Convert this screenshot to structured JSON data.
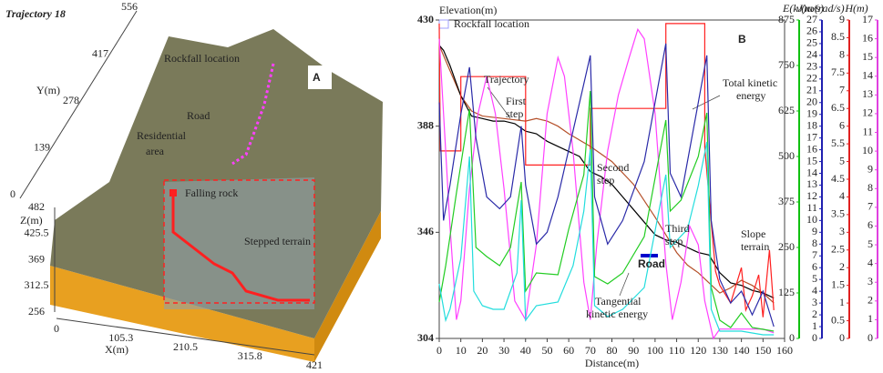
{
  "chart_data": [
    {
      "type": "terrain3d",
      "title": "Trajectory 18",
      "xlabel": "X(m)",
      "ylabel": "Y(m)",
      "zlabel": "Z(m)",
      "xlim": [
        0,
        421
      ],
      "xticks": [
        0,
        105.3,
        210.5,
        315.8,
        421
      ],
      "ylim": [
        0,
        556
      ],
      "yticks": [
        0,
        139,
        278,
        417,
        556
      ],
      "zlim": [
        256,
        482
      ],
      "zticks": [
        256,
        312.5,
        369,
        425.5,
        482
      ],
      "annotations": [
        [
          "Rockfall location"
        ],
        [
          "Road"
        ],
        [
          "Residential",
          "area"
        ],
        [
          "Falling rock"
        ],
        [
          "Stepped terrain"
        ],
        [
          "A"
        ]
      ]
    },
    {
      "type": "line",
      "xlabel": "Distance(m)",
      "ylabel": "Elevation(m)",
      "xlim": [
        0,
        160
      ],
      "xticks": [
        0,
        10,
        20,
        30,
        40,
        50,
        60,
        70,
        80,
        90,
        100,
        110,
        120,
        130,
        140,
        150,
        160
      ],
      "ylim": [
        304,
        430
      ],
      "yticks": [
        304,
        346,
        388,
        430
      ],
      "y2label": "E(kJ)",
      "y2color": "#10c010",
      "y2lim": [
        0,
        875
      ],
      "y2ticks": [
        0,
        125,
        250,
        375,
        500,
        625,
        750,
        875
      ],
      "y3label": "v(m/s)",
      "y3color": "#2020b0",
      "y3lim": [
        0,
        27
      ],
      "y3ticks": [
        0,
        1,
        2,
        3,
        4,
        5,
        6,
        7,
        8,
        9,
        10,
        11,
        12,
        13,
        14,
        15,
        16,
        17,
        18,
        19,
        20,
        21,
        22,
        23,
        24,
        25,
        26,
        27
      ],
      "y4label": "ω(rad/s)",
      "y4color": "#e02020",
      "y4lim": [
        0,
        9
      ],
      "y4ticks": [
        0,
        0.5,
        1,
        1.5,
        2,
        2.5,
        3,
        3.5,
        4,
        4.5,
        5,
        5.5,
        6,
        6.5,
        7,
        7.5,
        8,
        8.5,
        9
      ],
      "y5label": "H(m)",
      "y5color": "#e040e0",
      "y5lim": [
        0,
        17
      ],
      "y5ticks": [
        0,
        1,
        2,
        3,
        4,
        5,
        6,
        7,
        8,
        9,
        10,
        11,
        12,
        13,
        14,
        15,
        16,
        17
      ],
      "annotations": [
        [
          "Rockfall location"
        ],
        [
          "Trajectory"
        ],
        [
          "First",
          "step"
        ],
        [
          "Total kinetic",
          "energy"
        ],
        [
          "Second",
          "step"
        ],
        [
          "Third",
          "step"
        ],
        [
          "Road"
        ],
        [
          "Slope",
          "terrain"
        ],
        [
          "Tangential",
          "kinetic energy"
        ],
        [
          "B"
        ]
      ],
      "series": [
        {
          "color": "#b5502a",
          "x": [
            0,
            5,
            10,
            15,
            20,
            30,
            40,
            45,
            50,
            55,
            60,
            70,
            80,
            90,
            100,
            105,
            110,
            115,
            120,
            125,
            130,
            135,
            140,
            145,
            150,
            155
          ],
          "values": [
            420,
            410,
            400,
            394,
            392,
            391,
            390,
            391,
            390,
            388,
            385,
            380,
            374,
            365,
            352,
            345,
            338,
            333,
            330,
            326,
            322,
            324,
            327,
            325,
            322,
            318
          ]
        },
        {
          "color": "#000000",
          "x": [
            0,
            2,
            5,
            10,
            15,
            20,
            25,
            30,
            35,
            40,
            45,
            50,
            55,
            60,
            65,
            70,
            75,
            80,
            85,
            90,
            95,
            100,
            105,
            110,
            115,
            120,
            125,
            130,
            135,
            140,
            145,
            150,
            155
          ],
          "values": [
            420,
            418,
            412,
            400,
            392,
            391,
            390,
            390,
            389,
            386,
            385,
            382,
            380,
            378,
            376,
            370,
            368,
            365,
            360,
            355,
            350,
            345,
            343,
            342,
            340,
            338,
            337,
            330,
            326,
            325,
            323,
            322,
            320
          ]
        },
        {
          "color": "#ff2020",
          "axis": "y4",
          "x": [
            0,
            0.5,
            10,
            10,
            40,
            40,
            70,
            70,
            105,
            105,
            123,
            123,
            125,
            128,
            130,
            135,
            140,
            142,
            145,
            148,
            150,
            153,
            155
          ],
          "values": [
            8.9,
            5.3,
            5.3,
            7.4,
            7.4,
            4.9,
            4.9,
            6.5,
            6.5,
            8.9,
            8.9,
            5.4,
            4,
            1.9,
            1.5,
            1,
            2,
            0.8,
            1.2,
            1.8,
            0.6,
            2.5,
            0.8
          ]
        },
        {
          "color": "#ff40ff",
          "axis": "y5",
          "x": [
            0,
            3,
            5,
            8,
            10,
            14,
            18,
            22,
            26,
            30,
            35,
            40,
            45,
            50,
            55,
            58,
            62,
            67,
            70,
            73,
            78,
            83,
            88,
            92,
            95,
            100,
            105,
            108,
            112,
            116,
            120,
            123,
            127,
            130,
            135,
            140,
            145,
            150,
            155
          ],
          "values": [
            16,
            10,
            6,
            1,
            2,
            8,
            12,
            14,
            12,
            8,
            2,
            1,
            5,
            12,
            15,
            14,
            10,
            3,
            1,
            5,
            10,
            13,
            15,
            16.5,
            16,
            12,
            4,
            1,
            3,
            6,
            5,
            2,
            0,
            0.5,
            0.5,
            0.5,
            0.5,
            0.5,
            0.3
          ]
        },
        {
          "color": "#2a2aa8",
          "axis": "y3",
          "x": [
            0,
            2,
            5,
            10,
            14,
            17,
            22,
            28,
            33,
            38,
            40,
            45,
            50,
            55,
            60,
            65,
            70,
            72,
            78,
            85,
            95,
            105,
            107,
            112,
            120,
            124,
            126,
            130,
            135,
            140,
            145,
            150,
            155
          ],
          "values": [
            20,
            10,
            13,
            19,
            23,
            17,
            12,
            11,
            12,
            18,
            13,
            8,
            9,
            12,
            16,
            20,
            24,
            12,
            8,
            10,
            15,
            25,
            14,
            12,
            20,
            24,
            10,
            5,
            3,
            4,
            2,
            4,
            1
          ]
        },
        {
          "color": "#22cc22",
          "axis": "y2",
          "x": [
            0,
            3,
            8,
            14,
            17,
            22,
            28,
            33,
            38,
            40,
            45,
            55,
            60,
            67,
            70,
            72,
            78,
            85,
            95,
            105,
            107,
            112,
            120,
            124,
            126,
            130,
            135,
            140,
            145,
            150,
            155
          ],
          "values": [
            100,
            200,
            400,
            630,
            250,
            225,
            200,
            250,
            430,
            130,
            180,
            175,
            300,
            450,
            680,
            170,
            150,
            180,
            280,
            600,
            350,
            380,
            500,
            620,
            140,
            50,
            30,
            70,
            30,
            25,
            20
          ]
        },
        {
          "color": "#22dddd",
          "axis": "y2",
          "x": [
            0,
            3,
            5,
            10,
            14,
            16,
            20,
            25,
            30,
            36,
            38,
            40,
            45,
            55,
            62,
            67,
            70,
            72,
            78,
            85,
            95,
            105,
            107,
            115,
            120,
            124,
            126,
            130,
            140,
            150,
            155
          ],
          "values": [
            150,
            50,
            80,
            220,
            500,
            130,
            90,
            80,
            80,
            180,
            380,
            50,
            90,
            100,
            200,
            350,
            520,
            90,
            60,
            80,
            140,
            450,
            250,
            300,
            420,
            540,
            80,
            20,
            20,
            10,
            10
          ]
        }
      ]
    }
  ]
}
